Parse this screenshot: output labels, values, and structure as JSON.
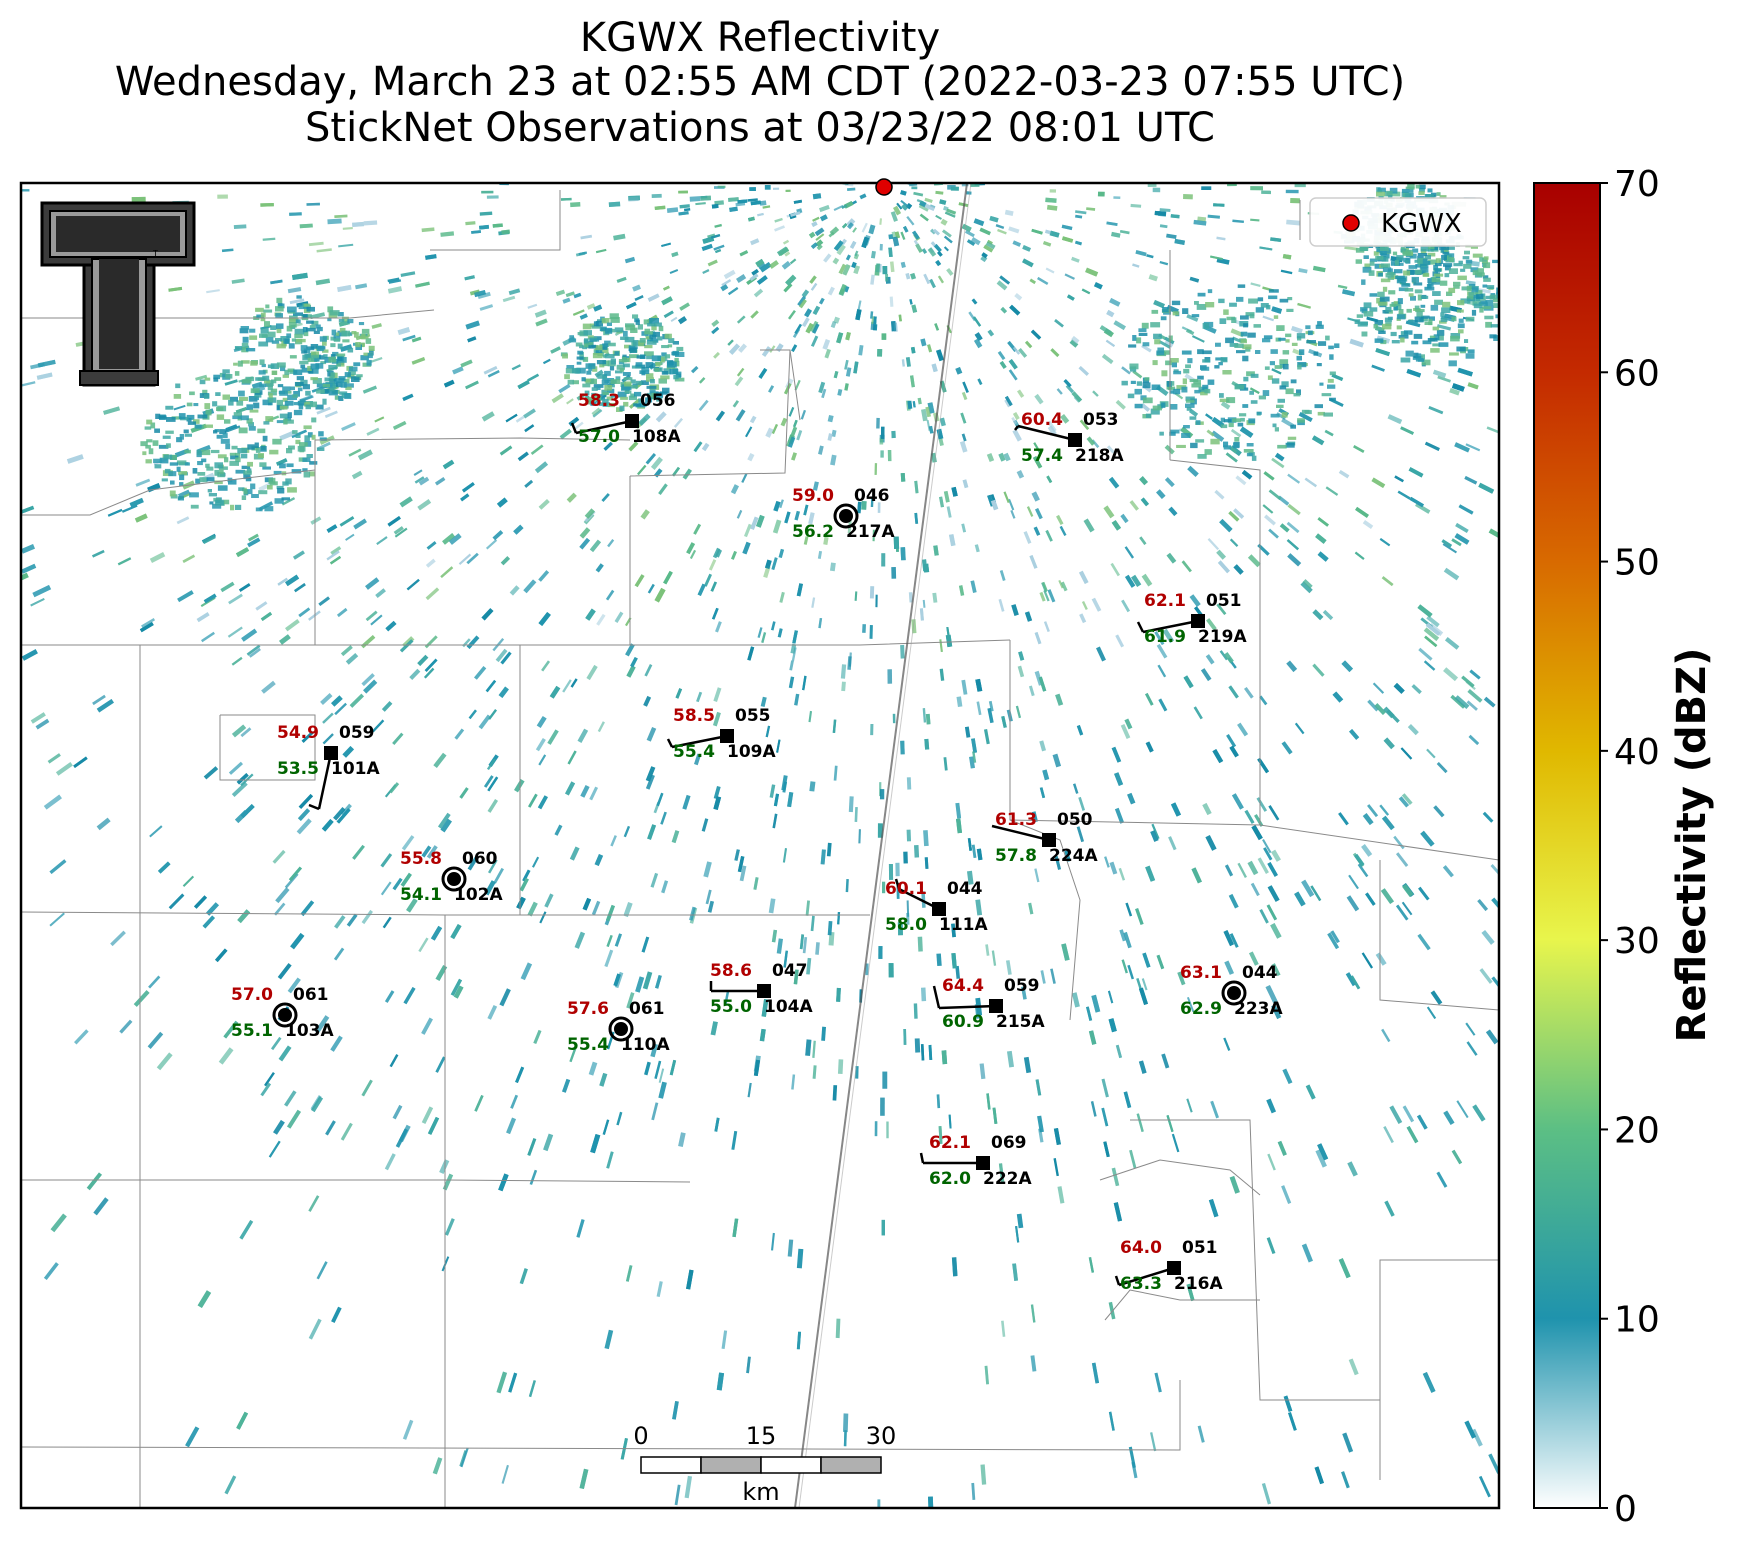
{
  "title": {
    "line1": "KGWX Reflectivity",
    "line2": "Wednesday, March 23 at 02:55 AM CDT (2022-03-23 07:55 UTC)",
    "line3": "StickNet Observations at 03/23/22 08:01 UTC"
  },
  "legend": {
    "label": "KGWX",
    "marker_color": "#e00000"
  },
  "logo": {
    "text": "T",
    "description": "Texas Tech double-T logo"
  },
  "colorbar": {
    "label": "Reflectivity (dBZ)",
    "ticks": [
      "0",
      "10",
      "20",
      "30",
      "40",
      "50",
      "60",
      "70"
    ],
    "colors": [
      "#ffffff",
      "#1f93ad",
      "#5cbf84",
      "#e8f54c",
      "#e0b800",
      "#d86a00",
      "#c42a00",
      "#a80000"
    ]
  },
  "scale_bar": {
    "ticks": [
      "0",
      "15",
      "30"
    ],
    "unit": "km"
  },
  "stations": [
    {
      "id": "108A",
      "temp": "58.3",
      "dew": "57.0",
      "dir": "056",
      "marker": "square"
    },
    {
      "id": "218A",
      "temp": "60.4",
      "dew": "57.4",
      "dir": "053",
      "marker": "square"
    },
    {
      "id": "217A",
      "temp": "59.0",
      "dew": "56.2",
      "dir": "046",
      "marker": "circle"
    },
    {
      "id": "219A",
      "temp": "62.1",
      "dew": "61.9",
      "dir": "051",
      "marker": "square"
    },
    {
      "id": "109A",
      "temp": "58.5",
      "dew": "55.4",
      "dir": "055",
      "marker": "square"
    },
    {
      "id": "101A",
      "temp": "54.9",
      "dew": "53.5",
      "dir": "059",
      "marker": "square"
    },
    {
      "id": "224A",
      "temp": "61.3",
      "dew": "57.8",
      "dir": "050",
      "marker": "square"
    },
    {
      "id": "102A",
      "temp": "55.8",
      "dew": "54.1",
      "dir": "060",
      "marker": "circle"
    },
    {
      "id": "111A",
      "temp": "60.1",
      "dew": "58.0",
      "dir": "044",
      "marker": "square"
    },
    {
      "id": "103A",
      "temp": "57.0",
      "dew": "55.1",
      "dir": "061",
      "marker": "circle"
    },
    {
      "id": "104A",
      "temp": "58.6",
      "dew": "55.0",
      "dir": "047",
      "marker": "square"
    },
    {
      "id": "110A",
      "temp": "57.6",
      "dew": "55.4",
      "dir": "061",
      "marker": "circle"
    },
    {
      "id": "215A",
      "temp": "64.4",
      "dew": "60.9",
      "dir": "059",
      "marker": "square"
    },
    {
      "id": "223A",
      "temp": "63.1",
      "dew": "62.9",
      "dir": "044",
      "marker": "circle"
    },
    {
      "id": "222A",
      "temp": "62.1",
      "dew": "62.0",
      "dir": "069",
      "marker": "square"
    },
    {
      "id": "216A",
      "temp": "64.0",
      "dew": "63.3",
      "dir": "051",
      "marker": "square"
    }
  ]
}
